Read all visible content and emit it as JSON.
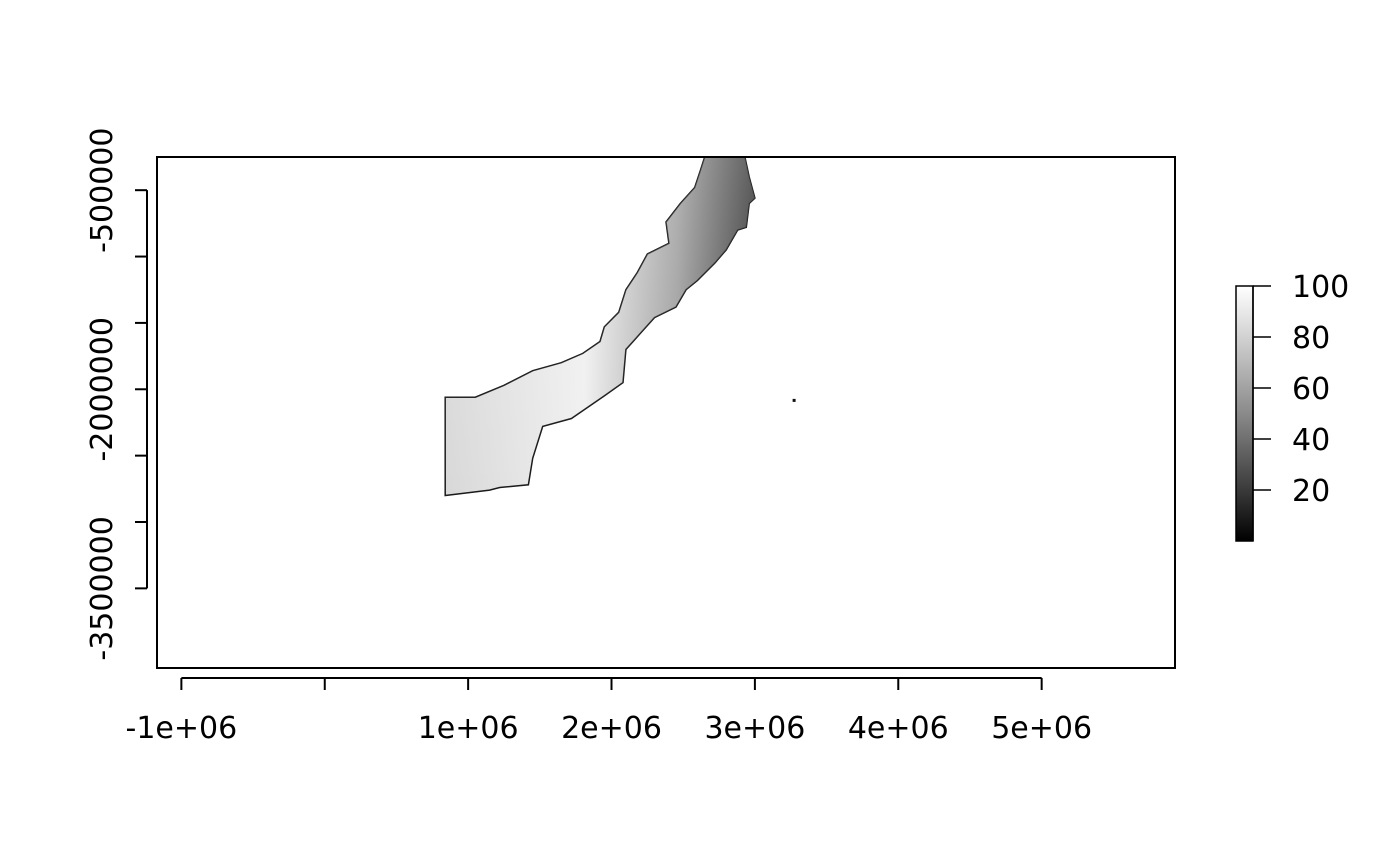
{
  "chart_data": {
    "type": "heatmap",
    "title": "",
    "xlabel": "",
    "ylabel": "",
    "xlim": [
      -1170000,
      5930000
    ],
    "ylim": [
      -4100000,
      -250000
    ],
    "grid": false,
    "x_ticks": [
      {
        "value": -1000000,
        "label": "-1e+06"
      },
      {
        "value": 0,
        "label": ""
      },
      {
        "value": 1000000,
        "label": "1e+06"
      },
      {
        "value": 2000000,
        "label": "2e+06"
      },
      {
        "value": 3000000,
        "label": "3e+06"
      },
      {
        "value": 4000000,
        "label": "4e+06"
      },
      {
        "value": 5000000,
        "label": "5e+06"
      }
    ],
    "y_ticks": [
      {
        "value": -500000,
        "label": "-500000"
      },
      {
        "value": -1000000,
        "label": ""
      },
      {
        "value": -1500000,
        "label": ""
      },
      {
        "value": -2000000,
        "label": "-2000000"
      },
      {
        "value": -2500000,
        "label": ""
      },
      {
        "value": -3000000,
        "label": ""
      },
      {
        "value": -3500000,
        "label": "-3500000"
      }
    ],
    "raster": {
      "description_in_data_units": "grayscale raster band along a coastline, values 0-100",
      "band_polygon": [
        [
          2650000,
          -250000
        ],
        [
          2930000,
          -250000
        ],
        [
          2960000,
          -400000
        ],
        [
          3000000,
          -560000
        ],
        [
          2960000,
          -600000
        ],
        [
          2940000,
          -780000
        ],
        [
          2880000,
          -800000
        ],
        [
          2800000,
          -950000
        ],
        [
          2720000,
          -1050000
        ],
        [
          2600000,
          -1180000
        ],
        [
          2520000,
          -1250000
        ],
        [
          2450000,
          -1380000
        ],
        [
          2300000,
          -1460000
        ],
        [
          2200000,
          -1580000
        ],
        [
          2100000,
          -1700000
        ],
        [
          2080000,
          -1950000
        ],
        [
          1950000,
          -2050000
        ],
        [
          1720000,
          -2220000
        ],
        [
          1520000,
          -2280000
        ],
        [
          1450000,
          -2520000
        ],
        [
          1420000,
          -2720000
        ],
        [
          1220000,
          -2740000
        ],
        [
          1150000,
          -2760000
        ],
        [
          1000000,
          -2780000
        ],
        [
          840000,
          -2800000
        ],
        [
          840000,
          -2060000
        ],
        [
          1050000,
          -2060000
        ],
        [
          1250000,
          -1970000
        ],
        [
          1450000,
          -1860000
        ],
        [
          1650000,
          -1800000
        ],
        [
          1800000,
          -1730000
        ],
        [
          1920000,
          -1640000
        ],
        [
          1950000,
          -1530000
        ],
        [
          2050000,
          -1420000
        ],
        [
          2100000,
          -1250000
        ],
        [
          2180000,
          -1120000
        ],
        [
          2250000,
          -980000
        ],
        [
          2400000,
          -900000
        ],
        [
          2380000,
          -740000
        ],
        [
          2480000,
          -600000
        ],
        [
          2580000,
          -480000
        ],
        [
          2620000,
          -350000
        ]
      ],
      "stray_pixel": [
        3270000,
        -2080000
      ]
    },
    "colorbar": {
      "min": 0,
      "max": 100,
      "ticks": [
        {
          "value": 100,
          "label": "100"
        },
        {
          "value": 80,
          "label": "80"
        },
        {
          "value": 60,
          "label": "60"
        },
        {
          "value": 40,
          "label": "40"
        },
        {
          "value": 20,
          "label": "20"
        }
      ],
      "low_color": "#000000",
      "high_color": "#ffffff"
    }
  }
}
